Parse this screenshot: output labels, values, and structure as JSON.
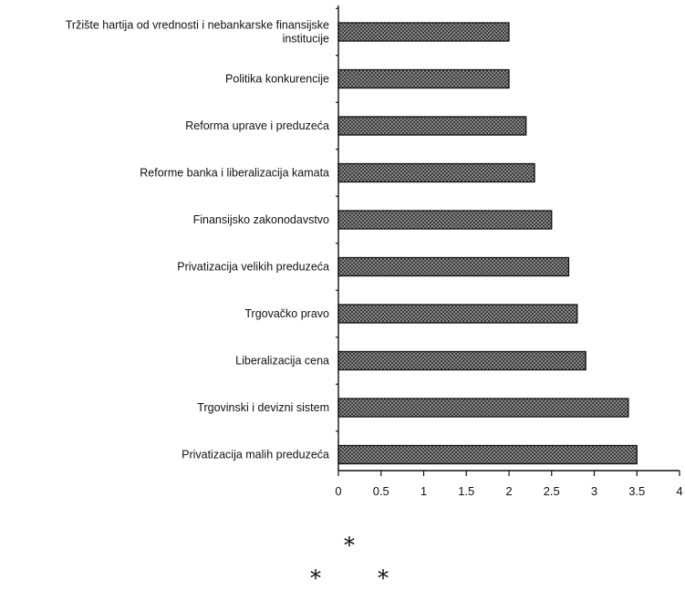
{
  "chart_data": {
    "type": "bar",
    "orientation": "horizontal",
    "categories": [
      [
        "Tržište hartija od vrednosti i nebankarske finansijske",
        "institucije"
      ],
      [
        "Politika konkurencije"
      ],
      [
        "Reforma uprave i preduzeća"
      ],
      [
        "Reforme banka i liberalizacija kamata"
      ],
      [
        "Finansijsko zakonodavstvo"
      ],
      [
        "Privatizacija velikih preduzeća"
      ],
      [
        "Trgovačko pravo"
      ],
      [
        "Liberalizacija cena"
      ],
      [
        "Trgovinski i devizni sistem"
      ],
      [
        "Privatizacija malih preduzeća"
      ]
    ],
    "values": [
      2.0,
      2.0,
      2.2,
      2.3,
      2.5,
      2.7,
      2.8,
      2.9,
      3.4,
      3.5
    ],
    "xlim": [
      0,
      4
    ],
    "xticks": [
      "0",
      "0.5",
      "1",
      "1.5",
      "2",
      "2.5",
      "3",
      "3.5",
      "4"
    ],
    "title": "",
    "xlabel": "",
    "ylabel": "",
    "grid": false,
    "bar_color": "#777777"
  },
  "decorations": {
    "stars": [
      "*",
      "*",
      "*"
    ]
  }
}
